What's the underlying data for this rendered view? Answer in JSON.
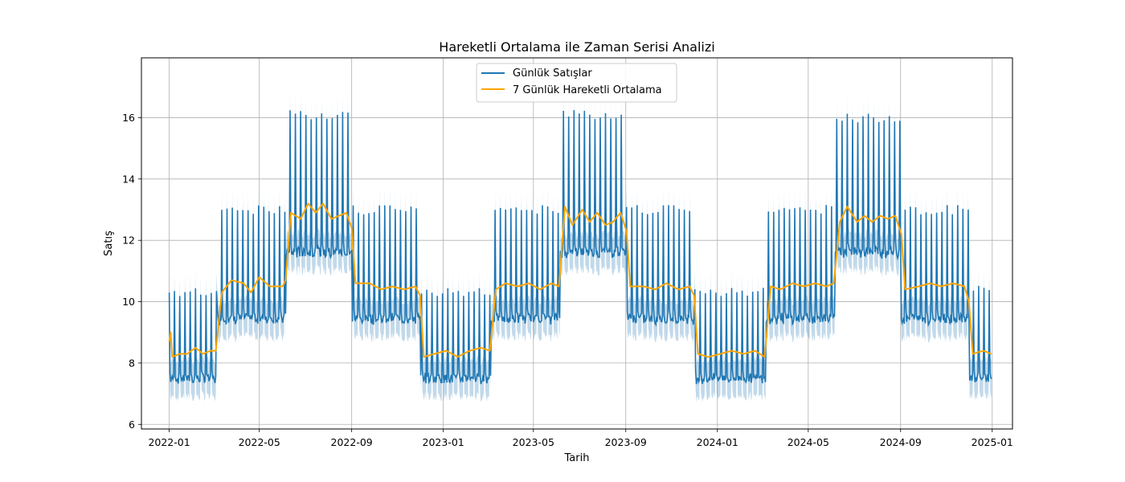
{
  "chart_data": {
    "type": "line",
    "title": "Hareketli Ortalama ile Zaman Serisi Analizi",
    "xlabel": "Tarih",
    "ylabel": "Satış",
    "x_range": [
      "2021-11-25",
      "2025-01-28"
    ],
    "ylim": [
      5.85,
      17.95
    ],
    "x_ticks": [
      "2022-01",
      "2022-05",
      "2022-09",
      "2023-01",
      "2023-05",
      "2023-09",
      "2024-01",
      "2024-05",
      "2024-09",
      "2025-01"
    ],
    "x_tick_dates": [
      "2022-01-01",
      "2022-05-01",
      "2022-09-01",
      "2023-01-01",
      "2023-05-01",
      "2023-09-01",
      "2024-01-01",
      "2024-05-01",
      "2024-09-01",
      "2025-01-01"
    ],
    "y_ticks": [
      6,
      8,
      10,
      12,
      14,
      16
    ],
    "grid": true,
    "legend_position": "top-center",
    "colors": {
      "daily": "#1f77b4",
      "band": "#1f77b4",
      "moving_average": "#ffa500",
      "grid": "#b0b0b0"
    },
    "series": [
      {
        "name": "Günlük Satışlar",
        "kind": "daily",
        "start_date": "2022-01-01",
        "end_date": "2024-12-31",
        "segments": [
          {
            "start": "2022-01-01",
            "end": "2022-03-05",
            "low": 7.3,
            "high": 10.3,
            "mean": 8.4
          },
          {
            "start": "2022-03-05",
            "end": "2022-06-05",
            "low": 9.2,
            "high": 13.0,
            "mean": 10.5
          },
          {
            "start": "2022-06-05",
            "end": "2022-09-01",
            "low": 11.3,
            "high": 16.1,
            "mean": 12.8
          },
          {
            "start": "2022-09-01",
            "end": "2022-12-01",
            "low": 9.2,
            "high": 13.0,
            "mean": 10.5
          },
          {
            "start": "2022-12-01",
            "end": "2023-03-05",
            "low": 7.3,
            "high": 10.3,
            "mean": 8.4
          },
          {
            "start": "2023-03-05",
            "end": "2023-06-05",
            "low": 9.2,
            "high": 13.0,
            "mean": 10.5
          },
          {
            "start": "2023-06-05",
            "end": "2023-09-01",
            "low": 11.3,
            "high": 16.1,
            "mean": 12.7
          },
          {
            "start": "2023-09-01",
            "end": "2023-12-01",
            "low": 9.2,
            "high": 13.0,
            "mean": 10.5
          },
          {
            "start": "2023-12-01",
            "end": "2024-03-05",
            "low": 7.3,
            "high": 10.3,
            "mean": 8.3
          },
          {
            "start": "2024-03-05",
            "end": "2024-06-05",
            "low": 9.2,
            "high": 13.0,
            "mean": 10.5
          },
          {
            "start": "2024-06-05",
            "end": "2024-09-01",
            "low": 11.3,
            "high": 16.0,
            "mean": 12.7
          },
          {
            "start": "2024-09-01",
            "end": "2024-12-01",
            "low": 9.2,
            "high": 13.0,
            "mean": 10.5
          },
          {
            "start": "2024-12-01",
            "end": "2024-12-31",
            "low": 7.3,
            "high": 10.4,
            "mean": 8.3
          }
        ],
        "band_spread": 0.6
      },
      {
        "name": "7 Günlük Hareketli Ortalama",
        "kind": "moving_average",
        "points": [
          [
            "2022-01-01",
            8.7
          ],
          [
            "2022-01-03",
            9.0
          ],
          [
            "2022-01-05",
            8.2
          ],
          [
            "2022-01-15",
            8.3
          ],
          [
            "2022-01-25",
            8.3
          ],
          [
            "2022-02-05",
            8.5
          ],
          [
            "2022-02-15",
            8.3
          ],
          [
            "2022-02-25",
            8.4
          ],
          [
            "2022-03-04",
            8.4
          ],
          [
            "2022-03-12",
            10.3
          ],
          [
            "2022-03-25",
            10.7
          ],
          [
            "2022-04-10",
            10.6
          ],
          [
            "2022-04-20",
            10.3
          ],
          [
            "2022-05-01",
            10.8
          ],
          [
            "2022-05-15",
            10.5
          ],
          [
            "2022-06-01",
            10.5
          ],
          [
            "2022-06-05",
            10.7
          ],
          [
            "2022-06-12",
            12.9
          ],
          [
            "2022-06-25",
            12.7
          ],
          [
            "2022-07-05",
            13.2
          ],
          [
            "2022-07-15",
            12.9
          ],
          [
            "2022-07-25",
            13.2
          ],
          [
            "2022-08-05",
            12.7
          ],
          [
            "2022-08-15",
            12.8
          ],
          [
            "2022-08-25",
            12.9
          ],
          [
            "2022-09-01",
            12.4
          ],
          [
            "2022-09-06",
            10.6
          ],
          [
            "2022-09-25",
            10.6
          ],
          [
            "2022-10-10",
            10.4
          ],
          [
            "2022-10-25",
            10.5
          ],
          [
            "2022-11-10",
            10.4
          ],
          [
            "2022-11-25",
            10.5
          ],
          [
            "2022-12-01",
            10.2
          ],
          [
            "2022-12-06",
            8.2
          ],
          [
            "2022-12-20",
            8.3
          ],
          [
            "2023-01-05",
            8.4
          ],
          [
            "2023-01-20",
            8.2
          ],
          [
            "2023-02-05",
            8.4
          ],
          [
            "2023-02-20",
            8.5
          ],
          [
            "2023-03-04",
            8.4
          ],
          [
            "2023-03-12",
            10.4
          ],
          [
            "2023-03-25",
            10.6
          ],
          [
            "2023-04-10",
            10.5
          ],
          [
            "2023-04-25",
            10.6
          ],
          [
            "2023-05-10",
            10.4
          ],
          [
            "2023-05-25",
            10.6
          ],
          [
            "2023-06-04",
            10.5
          ],
          [
            "2023-06-12",
            13.1
          ],
          [
            "2023-06-22",
            12.5
          ],
          [
            "2023-07-05",
            13.0
          ],
          [
            "2023-07-15",
            12.6
          ],
          [
            "2023-07-25",
            12.9
          ],
          [
            "2023-08-05",
            12.5
          ],
          [
            "2023-08-15",
            12.6
          ],
          [
            "2023-08-25",
            12.9
          ],
          [
            "2023-09-02",
            12.3
          ],
          [
            "2023-09-07",
            10.5
          ],
          [
            "2023-09-25",
            10.5
          ],
          [
            "2023-10-10",
            10.4
          ],
          [
            "2023-10-25",
            10.6
          ],
          [
            "2023-11-10",
            10.4
          ],
          [
            "2023-11-25",
            10.5
          ],
          [
            "2023-12-01",
            10.2
          ],
          [
            "2023-12-06",
            8.3
          ],
          [
            "2023-12-20",
            8.2
          ],
          [
            "2024-01-05",
            8.3
          ],
          [
            "2024-01-20",
            8.4
          ],
          [
            "2024-02-05",
            8.3
          ],
          [
            "2024-02-20",
            8.4
          ],
          [
            "2024-03-04",
            8.2
          ],
          [
            "2024-03-12",
            10.5
          ],
          [
            "2024-03-25",
            10.4
          ],
          [
            "2024-04-10",
            10.6
          ],
          [
            "2024-04-25",
            10.5
          ],
          [
            "2024-05-10",
            10.6
          ],
          [
            "2024-05-25",
            10.5
          ],
          [
            "2024-06-04",
            10.6
          ],
          [
            "2024-06-12",
            12.6
          ],
          [
            "2024-06-22",
            13.1
          ],
          [
            "2024-07-05",
            12.6
          ],
          [
            "2024-07-15",
            12.8
          ],
          [
            "2024-07-25",
            12.6
          ],
          [
            "2024-08-05",
            12.8
          ],
          [
            "2024-08-15",
            12.7
          ],
          [
            "2024-08-25",
            12.8
          ],
          [
            "2024-09-02",
            12.2
          ],
          [
            "2024-09-07",
            10.4
          ],
          [
            "2024-09-25",
            10.5
          ],
          [
            "2024-10-10",
            10.6
          ],
          [
            "2024-10-25",
            10.5
          ],
          [
            "2024-11-10",
            10.6
          ],
          [
            "2024-11-25",
            10.5
          ],
          [
            "2024-12-01",
            10.0
          ],
          [
            "2024-12-06",
            8.3
          ],
          [
            "2024-12-20",
            8.4
          ],
          [
            "2024-12-31",
            8.3
          ]
        ]
      }
    ]
  }
}
